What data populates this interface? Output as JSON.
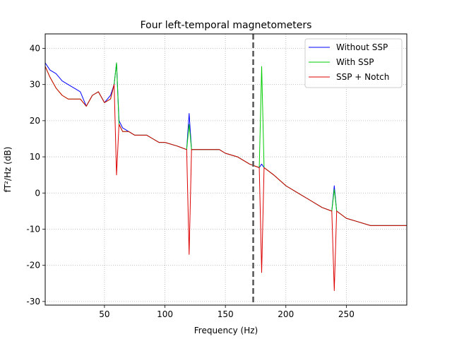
{
  "chart_data": {
    "type": "line",
    "title": "Four left-temporal magnetometers",
    "xlabel": "Frequency (Hz)",
    "ylabel": "fT²/Hz (dB)",
    "xlim": [
      1,
      300
    ],
    "ylim": [
      -31,
      44
    ],
    "xticks": [
      50,
      100,
      150,
      200,
      250
    ],
    "yticks": [
      -30,
      -20,
      -10,
      0,
      10,
      20,
      30,
      40
    ],
    "grid": true,
    "grid_style": "dotted",
    "legend_position": "top-right",
    "vline": {
      "x": 173,
      "style": "dashed",
      "color": "#555555"
    },
    "x": [
      1,
      5,
      10,
      15,
      20,
      25,
      30,
      35,
      40,
      45,
      50,
      55,
      58,
      60,
      62,
      65,
      70,
      75,
      80,
      85,
      90,
      95,
      100,
      110,
      118,
      120,
      122,
      130,
      140,
      143,
      145,
      150,
      160,
      170,
      178,
      180,
      182,
      190,
      200,
      210,
      220,
      230,
      238,
      240,
      242,
      250,
      260,
      270,
      280,
      290,
      300
    ],
    "series": [
      {
        "name": "Without SSP",
        "color": "#0000ff",
        "values": [
          36,
          34,
          33,
          31,
          30,
          29,
          28,
          24,
          27,
          28,
          25,
          27,
          30,
          36,
          20,
          18,
          17,
          16,
          16,
          16,
          15,
          14,
          14,
          13,
          12,
          22,
          12,
          12,
          12,
          12,
          12,
          11,
          10,
          8,
          7,
          8,
          7,
          5,
          2,
          0,
          -2,
          -4,
          -5,
          2,
          -5,
          -7,
          -8,
          -9,
          -9,
          -9,
          -9
        ]
      },
      {
        "name": "With SSP",
        "color": "#00cc00",
        "values": [
          35,
          32,
          29,
          27,
          26,
          26,
          26,
          24,
          27,
          28,
          25,
          26,
          30,
          36,
          19,
          17,
          17,
          16,
          16,
          16,
          15,
          14,
          14,
          13,
          12,
          19,
          12,
          12,
          12,
          12,
          12,
          11,
          10,
          8,
          7,
          35,
          7,
          5,
          2,
          0,
          -2,
          -4,
          -5,
          1,
          -5,
          -7,
          -8,
          -9,
          -9,
          -9,
          -9
        ]
      },
      {
        "name": "SSP + Notch",
        "color": "#dd0000",
        "values": [
          35,
          32,
          29,
          27,
          26,
          26,
          26,
          24,
          27,
          28,
          25,
          26,
          30,
          5,
          19,
          17,
          17,
          16,
          16,
          16,
          15,
          14,
          14,
          13,
          12,
          -17,
          12,
          12,
          12,
          12,
          12,
          11,
          10,
          8,
          7,
          -22,
          7,
          5,
          2,
          0,
          -2,
          -4,
          -5,
          -27,
          -5,
          -7,
          -8,
          -9,
          -9,
          -9,
          -9
        ]
      }
    ]
  }
}
